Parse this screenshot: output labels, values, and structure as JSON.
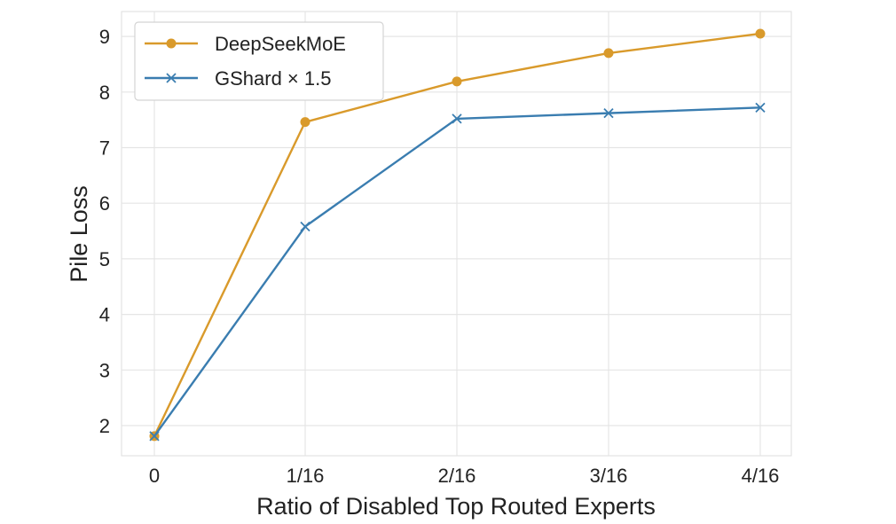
{
  "chart_data": {
    "type": "line",
    "title": "",
    "xlabel": "Ratio of Disabled Top Routed Experts",
    "ylabel": "Pile Loss",
    "categories": [
      "0",
      "1/16",
      "2/16",
      "3/16",
      "4/16"
    ],
    "x": [
      0,
      1,
      2,
      3,
      4
    ],
    "ylim": [
      1.5,
      9.3
    ],
    "yticks": [
      2,
      3,
      4,
      5,
      6,
      7,
      8,
      9
    ],
    "grid": true,
    "legend_position": "top-left",
    "series": [
      {
        "name": "DeepSeekMoE",
        "marker": "circle",
        "color": "#D99A2B",
        "values": [
          1.81,
          7.46,
          8.19,
          8.7,
          9.05
        ]
      },
      {
        "name": "GShard × 1.5",
        "marker": "x",
        "color": "#3A7DB0",
        "values": [
          1.81,
          5.58,
          7.52,
          7.62,
          7.72
        ]
      }
    ]
  }
}
